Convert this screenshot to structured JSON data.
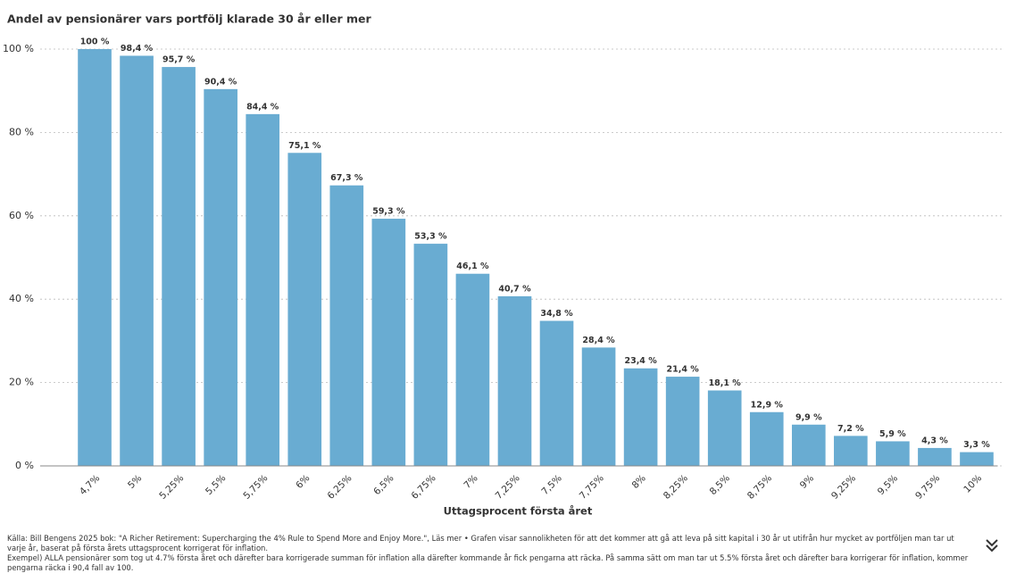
{
  "chart_data": {
    "type": "bar",
    "title": "Andel av pensionärer vars portfölj klarade 30 år eller mer",
    "x_label": "Uttagsprocent första året",
    "categories": [
      "4,7%",
      "5%",
      "5,25%",
      "5,5%",
      "5,75%",
      "6%",
      "6,25%",
      "6,5%",
      "6,75%",
      "7%",
      "7,25%",
      "7,5%",
      "7,75%",
      "8%",
      "8,25%",
      "8,5%",
      "8,75%",
      "9%",
      "9,25%",
      "9,5%",
      "9,75%",
      "10%"
    ],
    "values": [
      100,
      98.4,
      95.7,
      90.4,
      84.4,
      75.1,
      67.3,
      59.3,
      53.3,
      46.1,
      40.7,
      34.8,
      28.4,
      23.4,
      21.4,
      18.1,
      12.9,
      9.9,
      7.2,
      5.9,
      4.3,
      3.3
    ],
    "value_labels": [
      "100 %",
      "98,4 %",
      "95,7 %",
      "90,4 %",
      "84,4 %",
      "75,1 %",
      "67,3 %",
      "59,3 %",
      "53,3 %",
      "46,1 %",
      "40,7 %",
      "34,8 %",
      "28,4 %",
      "23,4 %",
      "21,4 %",
      "18,1 %",
      "12,9 %",
      "9,9 %",
      "7,2 %",
      "5,9 %",
      "4,3 %",
      "3,3 %"
    ],
    "color": "#69acd2",
    "ylim": [
      0,
      100
    ],
    "yticks": [
      {
        "value": 0,
        "label": "0 %"
      },
      {
        "value": 20,
        "label": "20 %"
      },
      {
        "value": 40,
        "label": "40 %"
      },
      {
        "value": 60,
        "label": "60 %"
      },
      {
        "value": 80,
        "label": "80 %"
      },
      {
        "value": 100,
        "label": "100 %"
      }
    ],
    "grid": true,
    "source": "Källa: Bill Bengens 2025 bok: \"A Richer Retirement: Supercharging the 4% Rule to Spend More and Enjoy More.\", Läs mer • Grafen visar sannolikheten för att det kommer att gå att leva på sitt kapital i 30 år ut utifrån hur mycket av portföljen man tar ut varje år, baserat på första årets uttagsprocent korrigerat för inflation.",
    "note": "Exempel) ALLA pensionärer som tog ut 4.7% första året och därefter bara korrigerade summan för inflation alla därefter kommande år fick pengarna att räcka. På samma sätt om man tar ut 5.5% första året och därefter bara korrigerar för inflation, kommer pengarna räcka i 90,4 fall av 100."
  }
}
